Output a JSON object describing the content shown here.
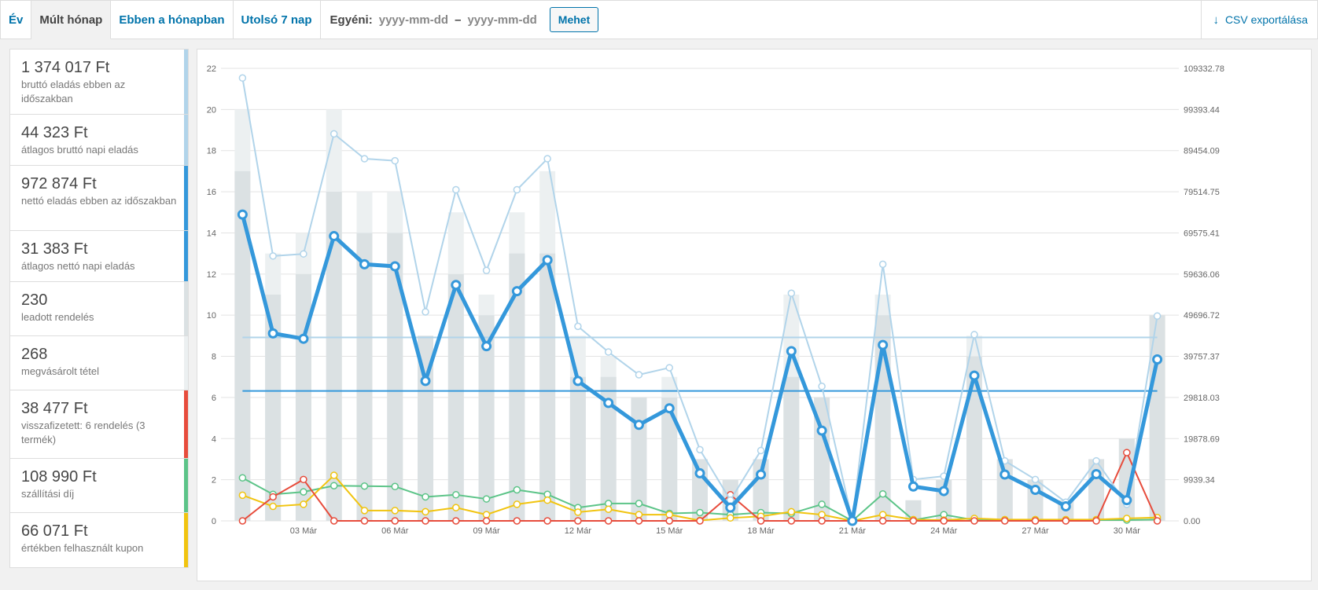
{
  "tabs": [
    {
      "label": "Év",
      "active": false
    },
    {
      "label": "Múlt hónap",
      "active": true
    },
    {
      "label": "Ebben a hónapban",
      "active": false
    },
    {
      "label": "Utolsó 7 nap",
      "active": false
    }
  ],
  "custom_range": {
    "label": "Egyéni:",
    "from_placeholder": "yyyy-mm-dd",
    "separator": "–",
    "to_placeholder": "yyyy-mm-dd",
    "go_label": "Mehet"
  },
  "export": {
    "label": "CSV exportálása",
    "icon": "download-arrow-icon"
  },
  "stats": [
    {
      "value": "1 374 017 Ft",
      "desc": "bruttó eladás ebben az időszakban",
      "color": "#b1d4ea"
    },
    {
      "value": "44 323 Ft",
      "desc": "átlagos bruttó napi eladás",
      "color": "#b1d4ea"
    },
    {
      "value": "972 874 Ft",
      "desc": "nettó eladás ebben az időszakban",
      "color": "#3498db"
    },
    {
      "value": "31 383 Ft",
      "desc": "átlagos nettó napi eladás",
      "color": "#3498db"
    },
    {
      "value": "230",
      "desc": "leadott rendelés",
      "color": "#dbe1e3"
    },
    {
      "value": "268",
      "desc": "megvásárolt tétel",
      "color": "#ecf0f1"
    },
    {
      "value": "38 477 Ft",
      "desc": "visszafizetett: 6 rendelés (3 termék)",
      "color": "#e74c3c"
    },
    {
      "value": "108 990 Ft",
      "desc": "szállítási díj",
      "color": "#5cc488"
    },
    {
      "value": "66 071 Ft",
      "desc": "értékben felhasznált kupon",
      "color": "#f1c40f"
    }
  ],
  "chart_data": {
    "type": "bar+line",
    "x_ticks": [
      "03 Már",
      "06 Már",
      "09 Már",
      "12 Már",
      "15 Már",
      "18 Már",
      "21 Már",
      "24 Már",
      "27 Már",
      "30 Már"
    ],
    "x_tick_index": [
      2,
      5,
      8,
      11,
      14,
      17,
      20,
      23,
      26,
      29
    ],
    "days": 31,
    "y_left": {
      "min": 0,
      "max": 22,
      "ticks": [
        0,
        2,
        4,
        6,
        8,
        10,
        12,
        14,
        16,
        18,
        20,
        22
      ]
    },
    "y_right": {
      "min": 0,
      "max": 109332.78,
      "ticks": [
        "0.00",
        "9939.34",
        "19878.69",
        "29818.03",
        "39757.37",
        "49696.72",
        "59636.06",
        "69575.41",
        "79514.75",
        "89454.09",
        "99393.44",
        "109332.78"
      ]
    },
    "series": [
      {
        "key": "items",
        "color": "#ecf0f1",
        "values": [
          20,
          13,
          14,
          20,
          16,
          16,
          9,
          15,
          11,
          15,
          17,
          9,
          8,
          6,
          7,
          3,
          2,
          3,
          11,
          6,
          0,
          11,
          1,
          2,
          9,
          3,
          2,
          1,
          3,
          4,
          10
        ]
      },
      {
        "key": "orders",
        "color": "#dbe1e3",
        "values": [
          17,
          11,
          12,
          16,
          14,
          14,
          9,
          12,
          10,
          13,
          13,
          7,
          7,
          6,
          6,
          3,
          2,
          3,
          7,
          6,
          0,
          10,
          1,
          2,
          8,
          3,
          2,
          1,
          3,
          4,
          10
        ]
      },
      {
        "key": "gross",
        "color": "#b1d4ea",
        "values": [
          107000,
          64000,
          64500,
          93500,
          87500,
          87000,
          50500,
          80000,
          60500,
          80000,
          87500,
          47000,
          40800,
          35300,
          37000,
          17200,
          5000,
          17000,
          55000,
          32500,
          0,
          62000,
          10000,
          10800,
          45000,
          14500,
          10000,
          4500,
          14500,
          4000,
          49500
        ]
      },
      {
        "key": "net",
        "color": "#3498db",
        "values": [
          74000,
          45300,
          44000,
          68800,
          62000,
          61500,
          33800,
          57000,
          42200,
          55500,
          63000,
          33800,
          28500,
          23200,
          27200,
          11500,
          3200,
          11200,
          41000,
          21800,
          0,
          42500,
          8300,
          7200,
          35100,
          11200,
          7500,
          3500,
          11300,
          5000,
          39000
        ]
      },
      {
        "key": "shipping",
        "color": "#5cc488",
        "values": [
          10400,
          6400,
          7000,
          8500,
          8400,
          8300,
          5800,
          6300,
          5300,
          7500,
          6400,
          3200,
          4200,
          4200,
          1800,
          2000,
          1500,
          2000,
          1800,
          4000,
          0,
          6500,
          200,
          1500,
          200,
          100,
          200,
          100,
          200,
          200,
          300
        ]
      },
      {
        "key": "coupon",
        "color": "#f1c40f",
        "values": [
          6200,
          3500,
          4000,
          11000,
          2500,
          2500,
          2200,
          3200,
          1500,
          4000,
          5000,
          2100,
          2800,
          1500,
          1500,
          100,
          700,
          1100,
          2200,
          1500,
          0,
          1500,
          300,
          200,
          600,
          300,
          300,
          300,
          300,
          600,
          800
        ]
      },
      {
        "key": "refund",
        "color": "#e74c3c",
        "values": [
          0,
          5800,
          10000,
          0,
          0,
          0,
          0,
          0,
          0,
          0,
          0,
          0,
          0,
          0,
          0,
          0,
          6300,
          0,
          0,
          0,
          0,
          0,
          0,
          0,
          0,
          0,
          0,
          0,
          0,
          16500,
          0
        ]
      }
    ],
    "avg_lines": [
      {
        "key": "avg_gross",
        "color": "#b1d4ea",
        "value": 44323
      },
      {
        "key": "avg_net",
        "color": "#3498db",
        "value": 31383
      }
    ]
  }
}
